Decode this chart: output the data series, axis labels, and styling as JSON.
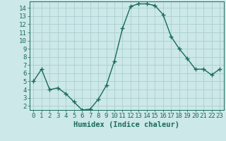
{
  "x": [
    0,
    1,
    2,
    3,
    4,
    5,
    6,
    7,
    8,
    9,
    10,
    11,
    12,
    13,
    14,
    15,
    16,
    17,
    18,
    19,
    20,
    21,
    22,
    23
  ],
  "y": [
    5.0,
    6.5,
    4.0,
    4.2,
    3.5,
    2.5,
    1.5,
    1.6,
    2.8,
    4.5,
    7.5,
    11.5,
    14.2,
    14.5,
    14.5,
    14.3,
    13.2,
    10.5,
    9.0,
    7.8,
    6.5,
    6.5,
    5.8,
    6.5
  ],
  "line_color": "#1a6b5a",
  "marker": "+",
  "marker_size": 4,
  "bg_color": "#cce8e8",
  "grid_color": "#aacece",
  "xlabel": "Humidex (Indice chaleur)",
  "xlim": [
    -0.5,
    23.5
  ],
  "ylim": [
    1.5,
    14.8
  ],
  "yticks": [
    2,
    3,
    4,
    5,
    6,
    7,
    8,
    9,
    10,
    11,
    12,
    13,
    14
  ],
  "xticks": [
    0,
    1,
    2,
    3,
    4,
    5,
    6,
    7,
    8,
    9,
    10,
    11,
    12,
    13,
    14,
    15,
    16,
    17,
    18,
    19,
    20,
    21,
    22,
    23
  ],
  "tick_color": "#1a6b5a",
  "label_color": "#1a6b5a",
  "font_size": 6.5,
  "xlabel_font_size": 7.5,
  "line_width": 1.0,
  "marker_color": "#1a6b5a"
}
